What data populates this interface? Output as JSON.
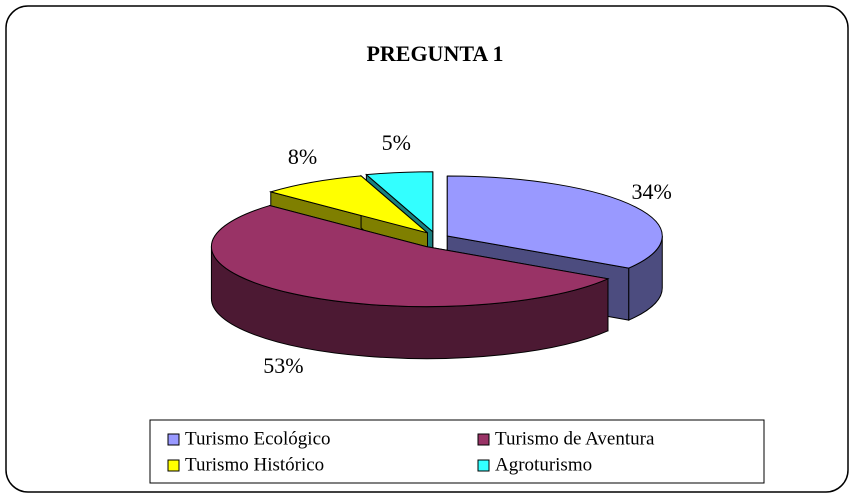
{
  "chart_data": {
    "type": "pie3d",
    "title": "PREGUNTA 1",
    "categories": [
      "Turismo Ecológico",
      "Turismo de Aventura",
      "Turismo Histórico",
      "Agroturismo"
    ],
    "values": [
      34,
      53,
      8,
      5
    ],
    "value_labels": [
      "34%",
      "53%",
      "8%",
      "5%"
    ],
    "colors": [
      "#9999ff",
      "#993366",
      "#ffff00",
      "#33ffff"
    ],
    "legend": "bottom"
  }
}
